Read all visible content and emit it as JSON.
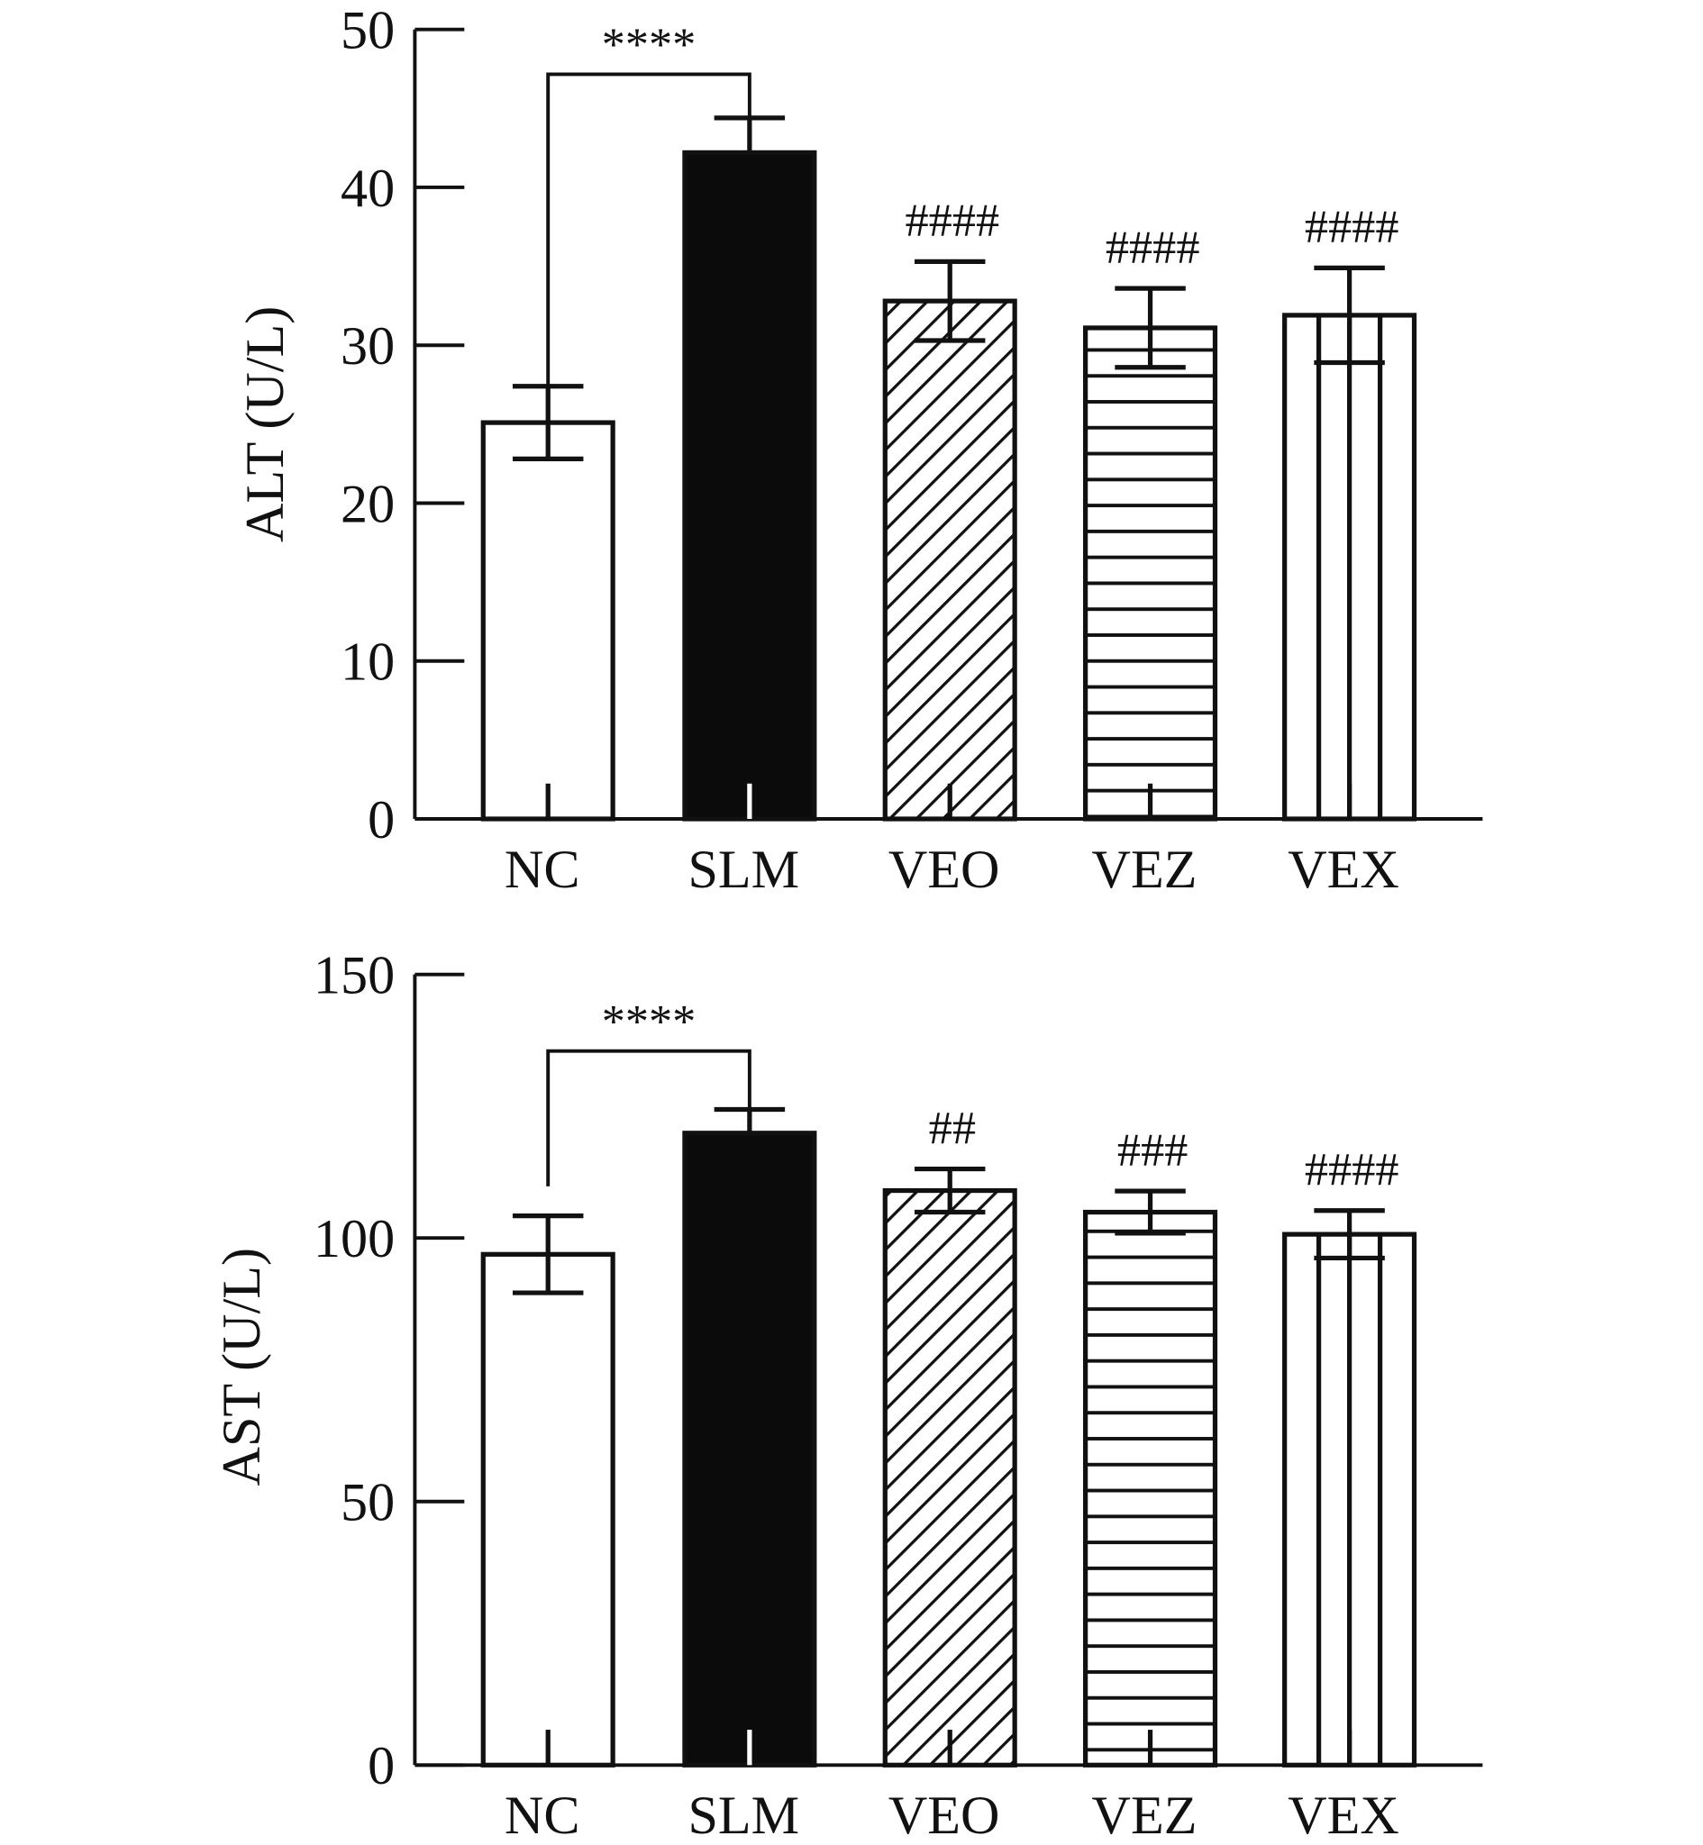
{
  "chart_data": [
    {
      "type": "bar",
      "title": "",
      "xlabel": "",
      "ylabel": "ALT (U/L)",
      "ylim": [
        0,
        50
      ],
      "yticks": [
        0,
        10,
        20,
        30,
        40,
        50
      ],
      "categories": [
        "NC",
        "SLM",
        "VEO",
        "VEZ",
        "VEX"
      ],
      "values": [
        25.1,
        42.2,
        32.8,
        31.1,
        31.9
      ],
      "errors": [
        2.3,
        2.2,
        2.5,
        2.5,
        3.0
      ],
      "patterns": [
        "white",
        "solid",
        "diagonal",
        "horizontal",
        "vertical"
      ],
      "bracket": {
        "from": "NC",
        "to": "SLM",
        "label": "****"
      },
      "annotations": [
        "",
        "",
        "####",
        "####",
        "####"
      ]
    },
    {
      "type": "bar",
      "title": "",
      "xlabel": "",
      "ylabel": "AST (U/L)",
      "ylim": [
        0,
        150
      ],
      "yticks": [
        0,
        50,
        100,
        150
      ],
      "categories": [
        "NC",
        "SLM",
        "VEO",
        "VEZ",
        "VEX"
      ],
      "values": [
        96.9,
        119.9,
        109.0,
        104.9,
        100.7
      ],
      "errors": [
        7.3,
        4.5,
        4.1,
        4.0,
        4.5
      ],
      "patterns": [
        "white",
        "solid",
        "diagonal",
        "horizontal",
        "vertical"
      ],
      "bracket": {
        "from": "NC",
        "to": "SLM",
        "label": "****"
      },
      "annotations": [
        "",
        "",
        "##",
        "###",
        "####"
      ]
    }
  ]
}
